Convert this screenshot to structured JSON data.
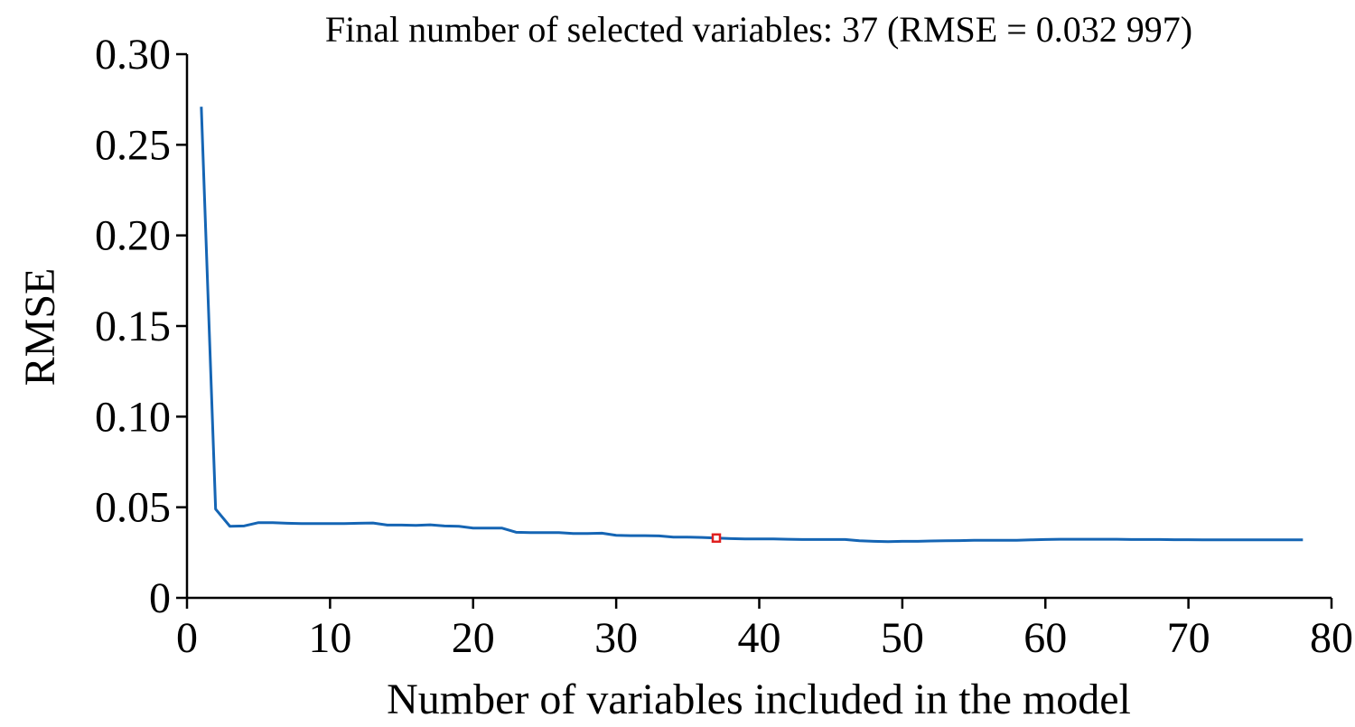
{
  "chart_data": {
    "type": "line",
    "title": "Final number of selected variables: 37  (RMSE = 0.032 997)",
    "xlabel": "Number of variables included in the model",
    "ylabel": "RMSE",
    "xlim": [
      0,
      80
    ],
    "ylim": [
      0,
      0.3
    ],
    "x_ticks": [
      0,
      10,
      20,
      30,
      40,
      50,
      60,
      70,
      80
    ],
    "x_tick_labels": [
      "0",
      "10",
      "20",
      "30",
      "40",
      "50",
      "60",
      "70",
      "80"
    ],
    "y_ticks": [
      0,
      0.05,
      0.1,
      0.15,
      0.2,
      0.25,
      0.3
    ],
    "y_tick_labels": [
      "0",
      "0.05",
      "0.10",
      "0.15",
      "0.20",
      "0.25",
      "0.30"
    ],
    "grid": false,
    "series": [
      {
        "color": "#1565b4",
        "x": [
          1,
          2,
          3,
          4,
          5,
          6,
          7,
          8,
          9,
          10,
          11,
          12,
          13,
          14,
          15,
          16,
          17,
          18,
          19,
          20,
          21,
          22,
          23,
          24,
          25,
          26,
          27,
          28,
          29,
          30,
          31,
          32,
          33,
          34,
          35,
          36,
          37,
          38,
          39,
          40,
          41,
          42,
          43,
          44,
          45,
          46,
          47,
          48,
          49,
          50,
          51,
          52,
          53,
          54,
          55,
          56,
          57,
          58,
          59,
          60,
          61,
          62,
          63,
          64,
          65,
          66,
          67,
          68,
          69,
          70,
          71,
          72,
          73,
          74,
          75,
          76,
          77,
          78
        ],
        "y": [
          0.271,
          0.049,
          0.0395,
          0.0397,
          0.0415,
          0.0415,
          0.0412,
          0.041,
          0.041,
          0.041,
          0.041,
          0.0412,
          0.0413,
          0.0402,
          0.0402,
          0.04,
          0.0403,
          0.0397,
          0.0395,
          0.0385,
          0.0385,
          0.0385,
          0.0362,
          0.036,
          0.036,
          0.036,
          0.0355,
          0.0355,
          0.0357,
          0.0345,
          0.0343,
          0.0343,
          0.0342,
          0.0335,
          0.0335,
          0.0333,
          0.033,
          0.0327,
          0.0325,
          0.0325,
          0.0325,
          0.0323,
          0.0322,
          0.0322,
          0.0322,
          0.0322,
          0.0315,
          0.0312,
          0.031,
          0.0312,
          0.0312,
          0.0314,
          0.0315,
          0.0316,
          0.0318,
          0.0318,
          0.0318,
          0.0318,
          0.032,
          0.0322,
          0.0323,
          0.0323,
          0.0323,
          0.0323,
          0.0323,
          0.0322,
          0.0322,
          0.0322,
          0.0321,
          0.0321,
          0.032,
          0.032,
          0.032,
          0.032,
          0.032,
          0.032,
          0.032,
          0.032
        ]
      }
    ],
    "highlight": {
      "x": 37,
      "y": 0.033,
      "color": "#e02020"
    }
  }
}
